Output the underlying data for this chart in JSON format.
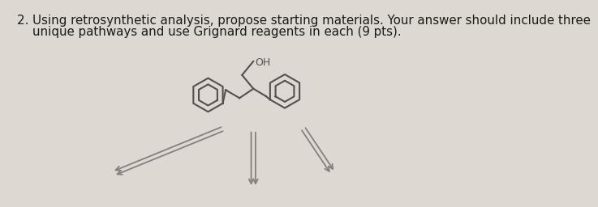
{
  "background_color": "#ddd8d2",
  "text_line1": "2. Using retrosynthetic analysis, propose starting materials. Your answer should include three",
  "text_line2": "    unique pathways and use Grignard reagents in each (9 pts).",
  "text_fontsize": 10.8,
  "text_color": "#1a1a1a",
  "structure_color": "#555050",
  "arrow_color": "#888080",
  "lw": 1.5
}
